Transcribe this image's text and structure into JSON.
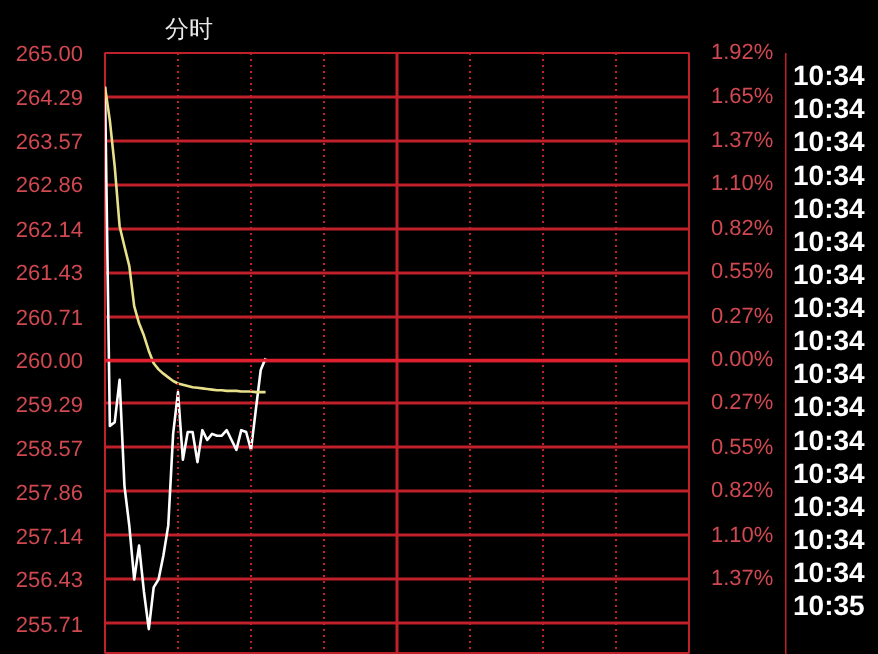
{
  "chart_data": {
    "type": "line",
    "title": "分时",
    "categories": [
      null,
      null,
      null,
      null,
      null,
      null,
      null,
      null,
      null,
      null,
      null,
      null,
      null,
      null,
      null,
      null,
      null,
      null,
      null,
      null,
      null,
      null,
      null,
      null,
      null,
      null,
      null,
      null,
      null,
      null,
      null,
      null,
      null,
      null,
      null,
      null,
      null,
      null,
      null,
      null,
      null,
      null,
      null,
      null,
      null,
      null,
      null,
      null,
      null,
      null,
      null,
      null,
      null,
      null,
      null,
      null,
      null,
      null,
      null,
      null,
      null,
      null,
      null,
      null,
      null,
      null,
      null,
      null,
      null,
      null,
      null,
      null,
      null,
      null,
      null,
      null,
      null,
      null,
      null,
      null,
      null,
      null,
      null,
      null,
      null,
      null,
      null,
      null,
      null,
      null,
      null,
      null,
      null,
      null,
      null,
      null,
      null,
      null,
      null,
      null,
      null,
      null,
      null,
      null,
      null,
      null,
      null,
      null,
      null,
      null,
      null,
      null,
      null,
      null,
      null,
      null,
      null,
      null,
      null,
      null,
      null
    ],
    "ylim": [
      255.2,
      265.0
    ],
    "yticks": [
      255.71,
      256.43,
      257.14,
      257.86,
      258.57,
      259.29,
      {
        "value": 260,
        "label": "260.00"
      },
      260.71,
      261.43,
      262.14,
      262.86,
      263.57,
      264.29,
      {
        "value": 265,
        "label": "265.00"
      }
    ],
    "y2lim": [
      -1.846,
      1.923
    ],
    "y2ticks": [
      {
        "value": 1.92,
        "label": "1.92%"
      },
      {
        "value": 1.65,
        "label": "1.65%"
      },
      {
        "value": 1.37,
        "label": "1.37%"
      },
      {
        "value": 1.1,
        "label": "1.10%"
      },
      {
        "value": 0.82,
        "label": "0.82%"
      },
      {
        "value": 0.55,
        "label": "0.55%"
      },
      {
        "value": 0.27,
        "label": "0.27%"
      },
      {
        "value": 0,
        "label": "0.00%"
      },
      {
        "value": -0.27,
        "label": "0.27%"
      },
      {
        "value": -0.55,
        "label": "0.55%"
      },
      {
        "value": -0.82,
        "label": "0.82%"
      },
      {
        "value": -1.1,
        "label": "1.10%"
      },
      {
        "value": -1.37,
        "label": "1.37%"
      }
    ],
    "tick_labels": "y",
    "grid": true,
    "marker": "none",
    "line_style": "solid",
    "ref_lines": [
      {
        "axis": "y",
        "value": 260.0,
        "label": null,
        "color": "#e02030"
      }
    ],
    "series": [
      {
        "color": "#ffffff",
        "values": [
          264.45,
          258.93,
          258.99,
          259.68,
          257.95,
          257.3,
          256.43,
          256.98,
          256.23,
          255.62,
          256.3,
          256.43,
          256.82,
          257.31,
          258.8,
          259.48,
          258.38,
          258.83,
          258.83,
          258.34,
          258.86,
          258.7,
          258.8,
          258.77,
          258.77,
          258.86,
          258.7,
          258.54,
          258.86,
          258.83,
          258.54,
          259.2,
          259.84,
          260.03,
          null,
          null,
          null,
          null,
          null,
          null,
          null,
          null,
          null,
          null,
          null,
          null,
          null,
          null,
          null,
          null,
          null,
          null,
          null,
          null,
          null,
          null,
          null,
          null,
          null,
          null,
          null,
          null,
          null,
          null,
          null,
          null,
          null,
          null,
          null,
          null,
          null,
          null,
          null,
          null,
          null,
          null,
          null,
          null,
          null,
          null,
          null,
          null,
          null,
          null,
          null,
          null,
          null,
          null,
          null,
          null,
          null,
          null,
          null,
          null,
          null,
          null,
          null,
          null,
          null,
          null,
          null,
          null,
          null,
          null,
          null,
          null,
          null,
          null,
          null,
          null,
          null,
          null,
          null,
          null,
          null,
          null,
          null,
          null,
          null,
          null,
          null
        ]
      },
      {
        "color": "#e8e08a",
        "values": [
          264.45,
          263.9,
          263.15,
          262.18,
          261.85,
          261.53,
          260.88,
          260.6,
          260.4,
          260.15,
          259.95,
          259.85,
          259.78,
          259.72,
          259.66,
          259.62,
          259.6,
          259.58,
          259.56,
          259.55,
          259.54,
          259.53,
          259.52,
          259.51,
          259.51,
          259.5,
          259.5,
          259.5,
          259.49,
          259.49,
          259.49,
          259.48,
          259.48,
          259.48,
          null,
          null,
          null,
          null,
          null,
          null,
          null,
          null,
          null,
          null,
          null,
          null,
          null,
          null,
          null,
          null,
          null,
          null,
          null,
          null,
          null,
          null,
          null,
          null,
          null,
          null,
          null,
          null,
          null,
          null,
          null,
          null,
          null,
          null,
          null,
          null,
          null,
          null,
          null,
          null,
          null,
          null,
          null,
          null,
          null,
          null,
          null,
          null,
          null,
          null,
          null,
          null,
          null,
          null,
          null,
          null,
          null,
          null,
          null,
          null,
          null,
          null,
          null,
          null,
          null,
          null,
          null,
          null,
          null,
          null,
          null,
          null,
          null,
          null,
          null,
          null,
          null,
          null,
          null,
          null,
          null,
          null,
          null,
          null,
          null,
          null,
          null
        ]
      }
    ],
    "annotations": [
      "10:34",
      "10:34",
      "10:34",
      "10:34",
      "10:34",
      "10:34",
      "10:34",
      "10:34",
      "10:34",
      "10:34",
      "10:34",
      "10:34",
      "10:34",
      "10:34",
      "10:34",
      "10:34",
      "10:35"
    ]
  }
}
